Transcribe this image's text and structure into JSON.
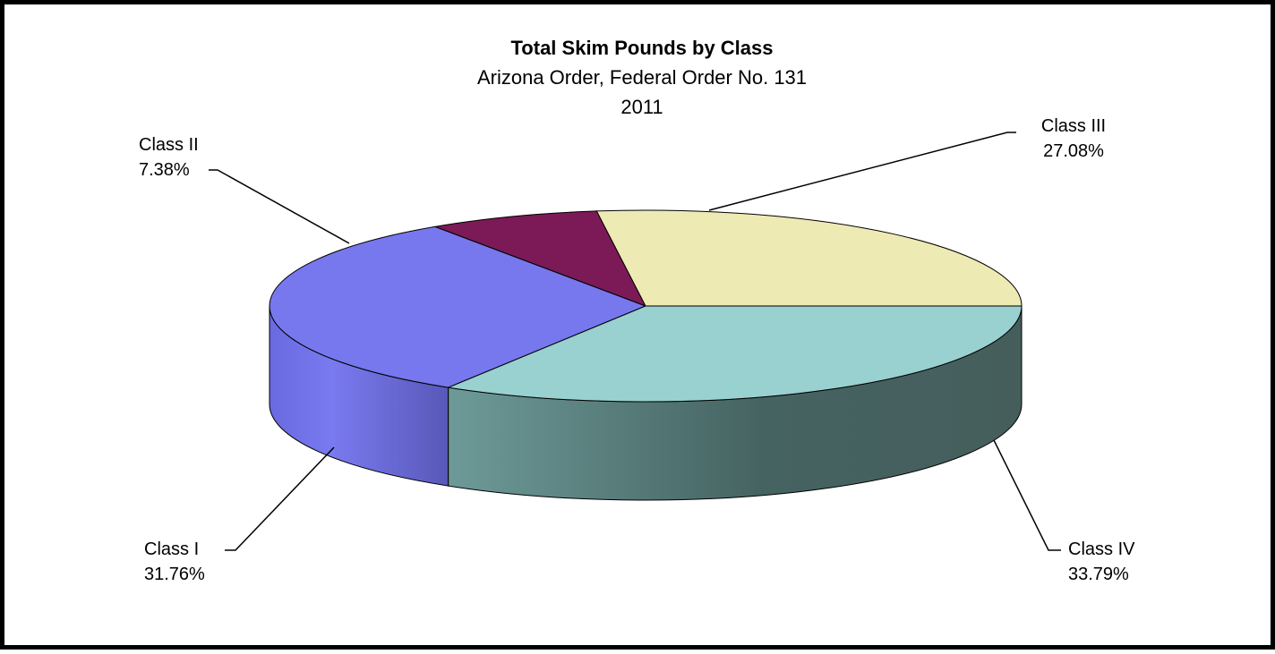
{
  "chart_data": {
    "type": "pie",
    "title": "Total Skim Pounds by Class",
    "subtitle": "Arizona Order, Federal Order No. 131",
    "subtitle2": "2011",
    "slices": [
      {
        "name": "Class I",
        "label": "Class I",
        "percent_label": "31.76%",
        "value": 31.76,
        "color": "#7777ee"
      },
      {
        "name": "Class II",
        "label": "Class II",
        "percent_label": "7.38%",
        "value": 7.38,
        "color": "#7b1a57"
      },
      {
        "name": "Class III",
        "label": "Class III",
        "percent_label": "27.08%",
        "value": 27.08,
        "color": "#eeeab4"
      },
      {
        "name": "Class IV",
        "label": "Class IV",
        "percent_label": "33.79%",
        "value": 33.79,
        "color": "#99d0d0"
      }
    ],
    "style": "3d-exploded-tilt"
  }
}
